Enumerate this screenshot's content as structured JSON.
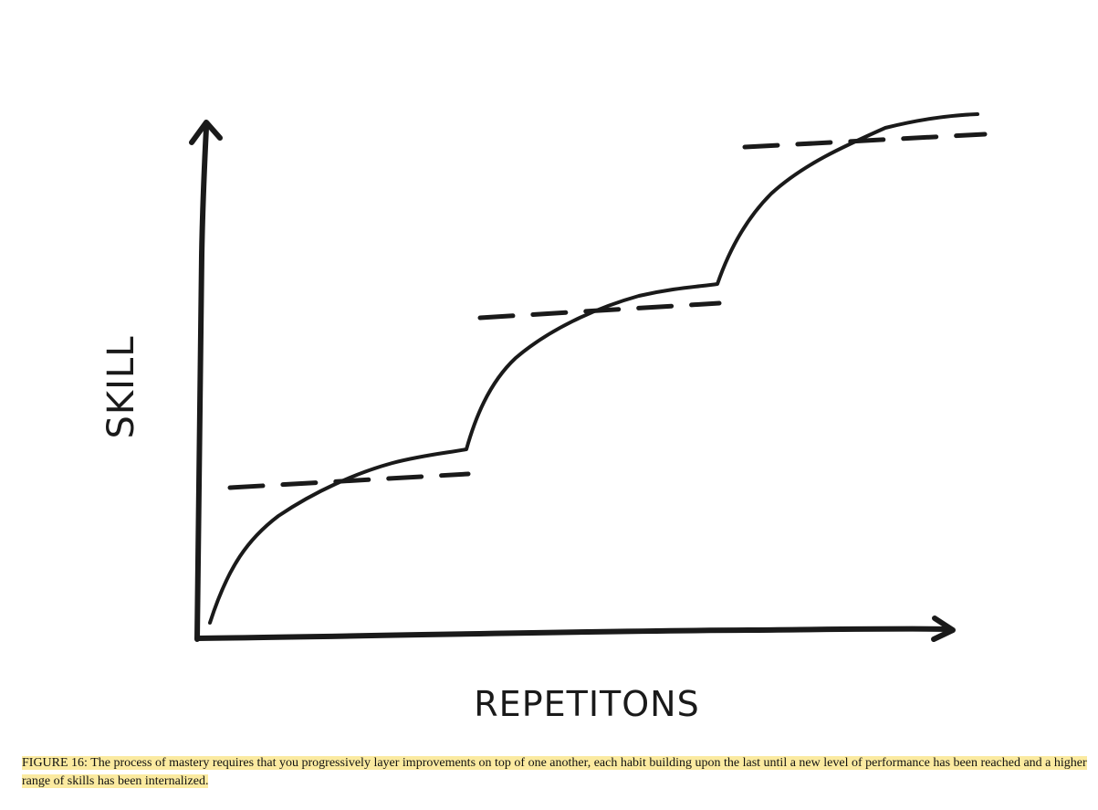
{
  "diagram": {
    "y_axis_label": "SKILL",
    "x_axis_label": "REPETITONS",
    "stroke_color": "#1a1a1a"
  },
  "caption": {
    "text": "FIGURE 16: The process of mastery requires that you progressively layer improvements on top of one another, each habit building upon the last until a new level of performance has been reached and a higher range of skills has been internalized.",
    "highlight_color": "#fbeaa0"
  }
}
